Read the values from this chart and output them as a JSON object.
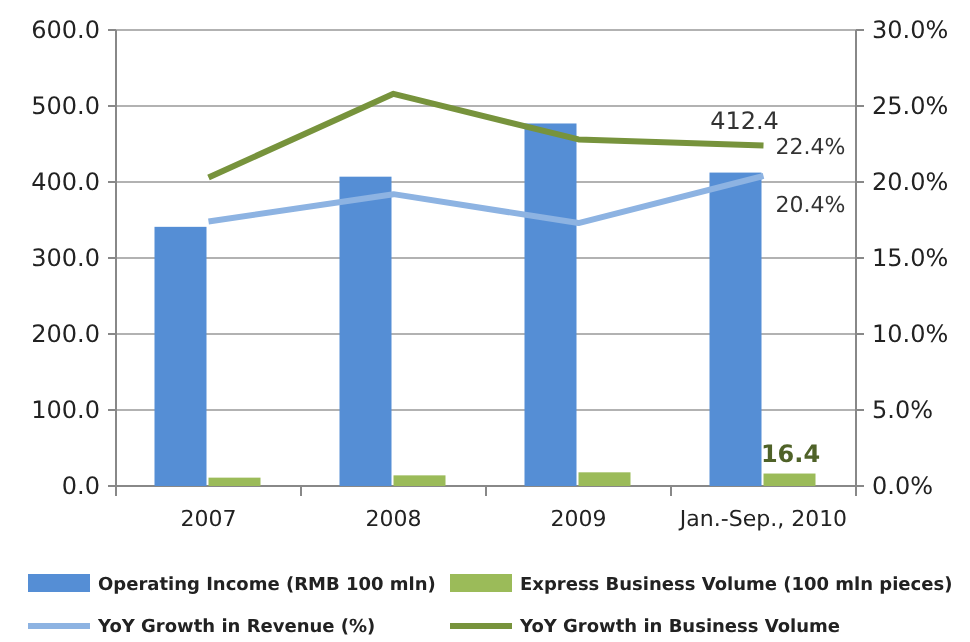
{
  "chart_data": {
    "type": "bar",
    "categories": [
      "2007",
      "2008",
      "2009",
      "Jan.-Sep., 2010"
    ],
    "series": [
      {
        "name": "Operating Income (RMB 100 mln)",
        "color": "#558ed5",
        "values": [
          341,
          407,
          477,
          412.4
        ],
        "value_labels": [
          null,
          null,
          null,
          "412.4"
        ]
      },
      {
        "name": "Express Business Volume (100 mln pieces)",
        "color": "#9bbb59",
        "values": [
          11,
          14,
          18,
          16.4
        ],
        "value_labels": [
          null,
          null,
          null,
          "16.4"
        ]
      },
      {
        "name": "YoY Growth in Revenue (%)",
        "type": "line",
        "axis": "y2",
        "color": "#8db3e2",
        "values": [
          17.4,
          19.2,
          17.3,
          20.4
        ],
        "value_labels": [
          null,
          null,
          null,
          "20.4%"
        ]
      },
      {
        "name": "YoY Growth in Business Volume",
        "type": "line",
        "axis": "y2",
        "color": "#77933c",
        "values": [
          20.3,
          25.8,
          22.8,
          22.4
        ],
        "value_labels": [
          null,
          null,
          null,
          "22.4%"
        ]
      }
    ],
    "ylim": [
      0,
      600
    ],
    "yticks": [
      {
        "value": 0,
        "label": "0.0"
      },
      {
        "value": 100,
        "label": "100.0"
      },
      {
        "value": 200,
        "label": "200.0"
      },
      {
        "value": 300,
        "label": "300.0"
      },
      {
        "value": 400,
        "label": "400.0"
      },
      {
        "value": 500,
        "label": "500.0"
      },
      {
        "value": 600,
        "label": "600.0"
      }
    ],
    "y2lim": [
      0,
      30
    ],
    "y2ticks": [
      {
        "value": 0,
        "label": "0.0%"
      },
      {
        "value": 5,
        "label": "5.0%"
      },
      {
        "value": 10,
        "label": "10.0%"
      },
      {
        "value": 15,
        "label": "15.0%"
      },
      {
        "value": 20,
        "label": "20.0%"
      },
      {
        "value": 25,
        "label": "25.0%"
      },
      {
        "value": 30,
        "label": "30.0%"
      }
    ],
    "grid": "y",
    "legend": "bottom",
    "marker": "none"
  }
}
